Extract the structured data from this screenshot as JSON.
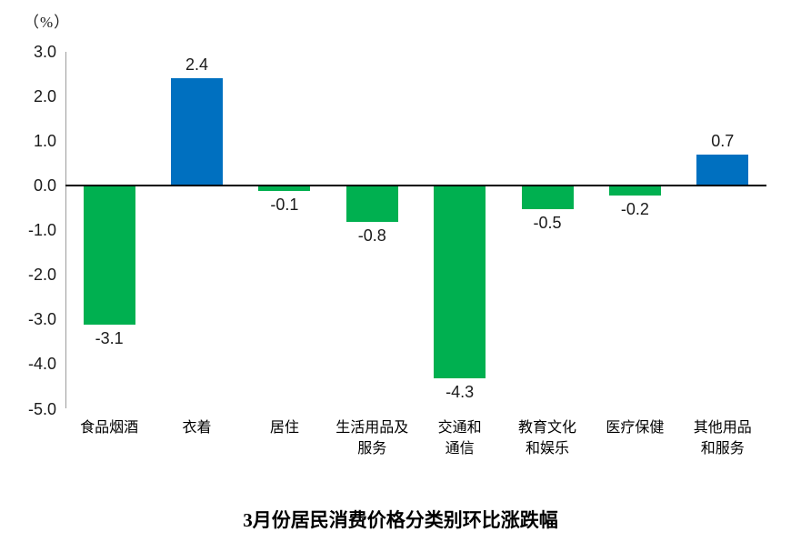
{
  "title": "3月份居民消费价格分类别环比涨跌幅",
  "unit_label": "（%）",
  "colors": {
    "positive_bar": "#0070C0",
    "negative_bar": "#00B050",
    "axis_line": "#9d9d9d",
    "zero_line": "#000000",
    "text": "#1a1a1a"
  },
  "chart_data": {
    "type": "bar",
    "title": "3月份居民消费价格分类别环比涨跌幅",
    "ylabel": "（%）",
    "categories": [
      "食品烟酒",
      "衣着",
      "居住",
      "生活用品及\n服务",
      "交通和\n通信",
      "教育文化\n和娱乐",
      "医疗保健",
      "其他用品\n和服务"
    ],
    "values": [
      -3.1,
      2.4,
      -0.1,
      -0.8,
      -4.3,
      -0.5,
      -0.2,
      0.7
    ],
    "value_labels": [
      "-3.1",
      "2.4",
      "-0.1",
      "-0.8",
      "-4.3",
      "-0.5",
      "-0.2",
      "0.7"
    ],
    "ylim": [
      -5.0,
      3.0
    ],
    "ytick_step": 1.0,
    "yticks": [
      "3.0",
      "2.0",
      "1.0",
      "0.0",
      "-1.0",
      "-2.0",
      "-3.0",
      "-4.0",
      "-5.0"
    ],
    "grid": false,
    "legend": null,
    "color_rule": "positive bars blue, negative bars green"
  }
}
